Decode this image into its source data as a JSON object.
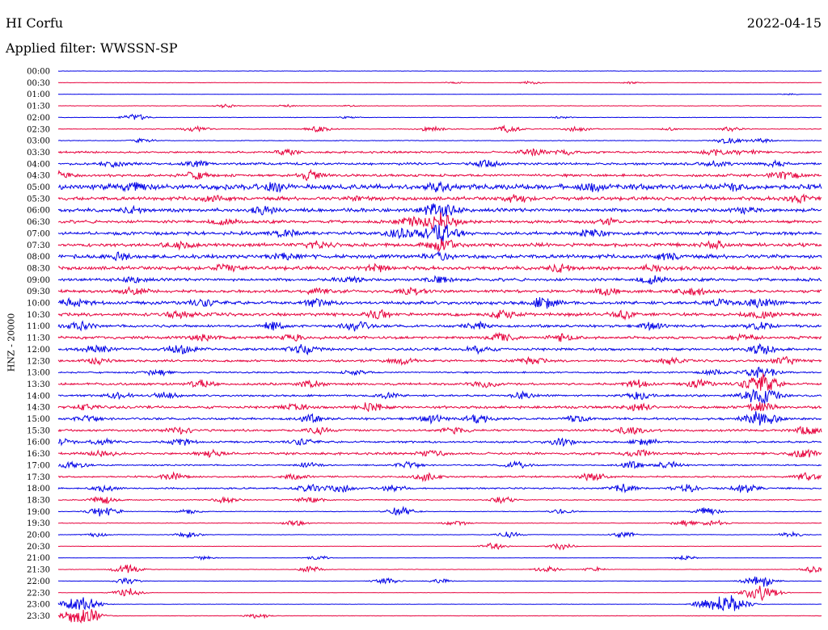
{
  "header": {
    "station": "HI Corfu",
    "date": "2022-04-15",
    "filter": "Applied filter: WWSSN-SP"
  },
  "chart_data": {
    "type": "line",
    "title": "HI Corfu",
    "subtitle": "Applied filter: WWSSN-SP",
    "ylabel": "HNZ - 20000",
    "xlabel": "",
    "grid": false,
    "legend": "none",
    "colors": {
      "odd_rows": "#0000e6",
      "even_rows": "#e6003c"
    },
    "rows": [
      {
        "time": "00:00",
        "level": 0.05,
        "events": []
      },
      {
        "time": "00:30",
        "level": 0.06,
        "events": [
          [
            0.52,
            0.3
          ],
          [
            0.62,
            0.4
          ],
          [
            0.75,
            0.3
          ]
        ]
      },
      {
        "time": "01:00",
        "level": 0.05,
        "events": [
          [
            0.96,
            0.2
          ]
        ]
      },
      {
        "time": "01:30",
        "level": 0.07,
        "events": [
          [
            0.22,
            0.5
          ],
          [
            0.3,
            0.3
          ],
          [
            0.38,
            0.2
          ]
        ]
      },
      {
        "time": "02:00",
        "level": 0.07,
        "events": [
          [
            0.1,
            1.0
          ],
          [
            0.38,
            0.3
          ],
          [
            0.66,
            0.3
          ]
        ]
      },
      {
        "time": "02:30",
        "level": 0.12,
        "events": [
          [
            0.18,
            0.9
          ],
          [
            0.34,
            1.0
          ],
          [
            0.49,
            0.8
          ],
          [
            0.59,
            1.0
          ],
          [
            0.68,
            0.8
          ],
          [
            0.8,
            0.5
          ],
          [
            0.88,
            0.6
          ]
        ]
      },
      {
        "time": "03:00",
        "level": 0.1,
        "events": [
          [
            0.11,
            0.6
          ],
          [
            0.88,
            1.0
          ],
          [
            0.92,
            0.7
          ]
        ]
      },
      {
        "time": "03:30",
        "level": 0.3,
        "events": [
          [
            0.3,
            0.8
          ],
          [
            0.62,
            1.0
          ],
          [
            0.66,
            0.9
          ],
          [
            0.86,
            0.9
          ],
          [
            0.9,
            0.9
          ]
        ]
      },
      {
        "time": "04:00",
        "level": 0.35,
        "events": [
          [
            0.07,
            0.9
          ],
          [
            0.18,
            0.8
          ],
          [
            0.56,
            1.0
          ],
          [
            0.86,
            1.0
          ],
          [
            0.94,
            0.9
          ]
        ]
      },
      {
        "time": "04:30",
        "level": 0.4,
        "events": [
          [
            0.0,
            1.0
          ],
          [
            0.18,
            1.2
          ],
          [
            0.33,
            1.2
          ],
          [
            0.95,
            1.2
          ]
        ]
      },
      {
        "time": "05:00",
        "level": 0.8,
        "events": [
          [
            0.1,
            1.2
          ],
          [
            0.28,
            1.0
          ],
          [
            0.5,
            1.0
          ],
          [
            0.7,
            1.0
          ],
          [
            0.88,
            1.0
          ]
        ]
      },
      {
        "time": "05:30",
        "level": 0.55,
        "events": [
          [
            0.2,
            0.9
          ],
          [
            0.4,
            0.8
          ],
          [
            0.6,
            0.9
          ],
          [
            0.97,
            1.1
          ]
        ]
      },
      {
        "time": "06:00",
        "level": 0.55,
        "events": [
          [
            0.1,
            0.8
          ],
          [
            0.27,
            0.9
          ],
          [
            0.5,
            2.2
          ],
          [
            0.9,
            0.8
          ]
        ]
      },
      {
        "time": "06:30",
        "level": 0.45,
        "events": [
          [
            0.22,
            0.9
          ],
          [
            0.46,
            1.0
          ],
          [
            0.5,
            2.4
          ],
          [
            0.72,
            0.9
          ]
        ]
      },
      {
        "time": "07:00",
        "level": 0.5,
        "events": [
          [
            0.3,
            1.0
          ],
          [
            0.45,
            1.4
          ],
          [
            0.5,
            2.6
          ],
          [
            0.7,
            1.0
          ]
        ]
      },
      {
        "time": "07:30",
        "level": 0.55,
        "events": [
          [
            0.16,
            1.0
          ],
          [
            0.34,
            1.0
          ],
          [
            0.5,
            1.6
          ],
          [
            0.86,
            0.9
          ]
        ]
      },
      {
        "time": "08:00",
        "level": 0.6,
        "events": [
          [
            0.08,
            0.9
          ],
          [
            0.3,
            0.9
          ],
          [
            0.5,
            0.9
          ],
          [
            0.8,
            0.9
          ]
        ]
      },
      {
        "time": "08:30",
        "level": 0.55,
        "events": [
          [
            0.22,
            0.9
          ],
          [
            0.42,
            0.9
          ],
          [
            0.66,
            1.0
          ],
          [
            0.78,
            0.9
          ]
        ]
      },
      {
        "time": "09:00",
        "level": 0.45,
        "events": [
          [
            0.1,
            0.8
          ],
          [
            0.38,
            0.9
          ],
          [
            0.5,
            1.0
          ],
          [
            0.78,
            1.1
          ]
        ]
      },
      {
        "time": "09:30",
        "level": 0.45,
        "events": [
          [
            0.1,
            0.9
          ],
          [
            0.34,
            0.8
          ],
          [
            0.46,
            1.0
          ],
          [
            0.72,
            0.9
          ],
          [
            0.83,
            1.0
          ]
        ]
      },
      {
        "time": "10:00",
        "level": 0.5,
        "events": [
          [
            0.02,
            1.1
          ],
          [
            0.19,
            1.0
          ],
          [
            0.34,
            1.0
          ],
          [
            0.64,
            1.6
          ],
          [
            0.87,
            1.1
          ],
          [
            0.92,
            1.3
          ]
        ]
      },
      {
        "time": "10:30",
        "level": 0.5,
        "events": [
          [
            0.16,
            1.0
          ],
          [
            0.42,
            1.2
          ],
          [
            0.58,
            1.1
          ],
          [
            0.74,
            1.0
          ],
          [
            0.92,
            1.2
          ]
        ]
      },
      {
        "time": "11:00",
        "level": 0.4,
        "events": [
          [
            0.03,
            1.0
          ],
          [
            0.28,
            1.0
          ],
          [
            0.39,
            1.5
          ],
          [
            0.55,
            1.0
          ],
          [
            0.78,
            1.0
          ],
          [
            0.92,
            1.2
          ]
        ]
      },
      {
        "time": "11:30",
        "level": 0.45,
        "events": [
          [
            0.19,
            1.0
          ],
          [
            0.31,
            1.0
          ],
          [
            0.58,
            1.2
          ],
          [
            0.66,
            0.9
          ],
          [
            0.9,
            0.9
          ]
        ]
      },
      {
        "time": "12:00",
        "level": 0.4,
        "events": [
          [
            0.05,
            1.0
          ],
          [
            0.16,
            1.2
          ],
          [
            0.32,
            1.3
          ],
          [
            0.55,
            1.0
          ],
          [
            0.92,
            1.4
          ]
        ]
      },
      {
        "time": "12:30",
        "level": 0.35,
        "events": [
          [
            0.05,
            0.8
          ],
          [
            0.45,
            0.9
          ],
          [
            0.62,
            1.0
          ],
          [
            0.8,
            0.9
          ],
          [
            0.95,
            1.2
          ]
        ]
      },
      {
        "time": "13:00",
        "level": 0.25,
        "events": [
          [
            0.13,
            1.0
          ],
          [
            0.39,
            0.7
          ],
          [
            0.86,
            0.7
          ],
          [
            0.92,
            2.0
          ]
        ]
      },
      {
        "time": "13:30",
        "level": 0.35,
        "events": [
          [
            0.19,
            1.1
          ],
          [
            0.33,
            0.9
          ],
          [
            0.56,
            0.9
          ],
          [
            0.76,
            1.0
          ],
          [
            0.84,
            1.1
          ],
          [
            0.92,
            2.6
          ]
        ]
      },
      {
        "time": "14:00",
        "level": 0.3,
        "events": [
          [
            0.08,
            1.0
          ],
          [
            0.14,
            1.0
          ],
          [
            0.43,
            0.9
          ],
          [
            0.61,
            0.9
          ],
          [
            0.76,
            1.0
          ],
          [
            0.92,
            2.6
          ]
        ]
      },
      {
        "time": "14:30",
        "level": 0.4,
        "events": [
          [
            0.04,
            0.9
          ],
          [
            0.31,
            1.0
          ],
          [
            0.41,
            1.3
          ],
          [
            0.76,
            1.0
          ],
          [
            0.92,
            1.4
          ]
        ]
      },
      {
        "time": "15:00",
        "level": 0.35,
        "events": [
          [
            0.04,
            1.0
          ],
          [
            0.33,
            1.0
          ],
          [
            0.49,
            1.1
          ],
          [
            0.55,
            1.2
          ],
          [
            0.68,
            0.9
          ],
          [
            0.92,
            2.2
          ]
        ]
      },
      {
        "time": "15:30",
        "level": 0.35,
        "events": [
          [
            0.16,
            0.9
          ],
          [
            0.34,
            0.9
          ],
          [
            0.52,
            0.9
          ],
          [
            0.75,
            1.0
          ],
          [
            0.98,
            1.2
          ]
        ]
      },
      {
        "time": "16:00",
        "level": 0.3,
        "events": [
          [
            0.0,
            1.2
          ],
          [
            0.06,
            1.0
          ],
          [
            0.16,
            1.0
          ],
          [
            0.32,
            0.9
          ],
          [
            0.66,
            1.1
          ],
          [
            0.77,
            1.0
          ]
        ]
      },
      {
        "time": "16:30",
        "level": 0.35,
        "events": [
          [
            0.06,
            1.0
          ],
          [
            0.2,
            1.0
          ],
          [
            0.49,
            1.0
          ],
          [
            0.76,
            1.1
          ],
          [
            0.98,
            1.3
          ]
        ]
      },
      {
        "time": "17:00",
        "level": 0.2,
        "events": [
          [
            0.02,
            1.2
          ],
          [
            0.33,
            0.9
          ],
          [
            0.46,
            1.1
          ],
          [
            0.6,
            1.1
          ],
          [
            0.75,
            1.0
          ],
          [
            0.8,
            1.0
          ]
        ]
      },
      {
        "time": "17:30",
        "level": 0.25,
        "events": [
          [
            0.15,
            1.0
          ],
          [
            0.31,
            0.9
          ],
          [
            0.48,
            1.2
          ],
          [
            0.7,
            1.1
          ],
          [
            0.98,
            1.0
          ]
        ]
      },
      {
        "time": "18:00",
        "level": 0.25,
        "events": [
          [
            0.06,
            0.9
          ],
          [
            0.33,
            1.1
          ],
          [
            0.37,
            1.2
          ],
          [
            0.44,
            1.0
          ],
          [
            0.74,
            1.3
          ],
          [
            0.82,
            1.2
          ],
          [
            0.9,
            1.4
          ]
        ]
      },
      {
        "time": "18:30",
        "level": 0.15,
        "events": [
          [
            0.06,
            1.2
          ],
          [
            0.22,
            0.9
          ],
          [
            0.33,
            1.1
          ],
          [
            0.58,
            0.9
          ]
        ]
      },
      {
        "time": "19:00",
        "level": 0.1,
        "events": [
          [
            0.06,
            1.6
          ],
          [
            0.17,
            0.8
          ],
          [
            0.45,
            1.4
          ],
          [
            0.66,
            0.7
          ],
          [
            0.85,
            1.2
          ]
        ]
      },
      {
        "time": "19:30",
        "level": 0.1,
        "events": [
          [
            0.31,
            0.8
          ],
          [
            0.52,
            0.8
          ],
          [
            0.82,
            0.9
          ],
          [
            0.86,
            0.9
          ]
        ]
      },
      {
        "time": "20:00",
        "level": 0.08,
        "events": [
          [
            0.05,
            0.6
          ],
          [
            0.17,
            0.9
          ],
          [
            0.59,
            0.9
          ],
          [
            0.74,
            0.9
          ],
          [
            0.96,
            0.7
          ]
        ]
      },
      {
        "time": "20:30",
        "level": 0.05,
        "events": [
          [
            0.57,
            1.0
          ],
          [
            0.66,
            0.9
          ]
        ]
      },
      {
        "time": "21:00",
        "level": 0.05,
        "events": [
          [
            0.19,
            0.6
          ],
          [
            0.34,
            0.6
          ],
          [
            0.82,
            0.7
          ]
        ]
      },
      {
        "time": "21:30",
        "level": 0.06,
        "events": [
          [
            0.09,
            1.4
          ],
          [
            0.33,
            0.9
          ],
          [
            0.64,
            0.9
          ],
          [
            0.7,
            0.7
          ],
          [
            0.99,
            0.9
          ]
        ]
      },
      {
        "time": "22:00",
        "level": 0.05,
        "events": [
          [
            0.09,
            0.9
          ],
          [
            0.43,
            1.0
          ],
          [
            0.5,
            0.6
          ],
          [
            0.92,
            2.0
          ]
        ]
      },
      {
        "time": "22:30",
        "level": 0.05,
        "events": [
          [
            0.09,
            1.4
          ],
          [
            0.92,
            2.4
          ]
        ]
      },
      {
        "time": "23:00",
        "level": 0.05,
        "events": [
          [
            0.03,
            2.6
          ],
          [
            0.85,
            1.3
          ],
          [
            0.88,
            2.6
          ]
        ]
      },
      {
        "time": "23:30",
        "level": 0.06,
        "events": [
          [
            0.03,
            2.8
          ],
          [
            0.26,
            0.8
          ]
        ]
      }
    ]
  }
}
